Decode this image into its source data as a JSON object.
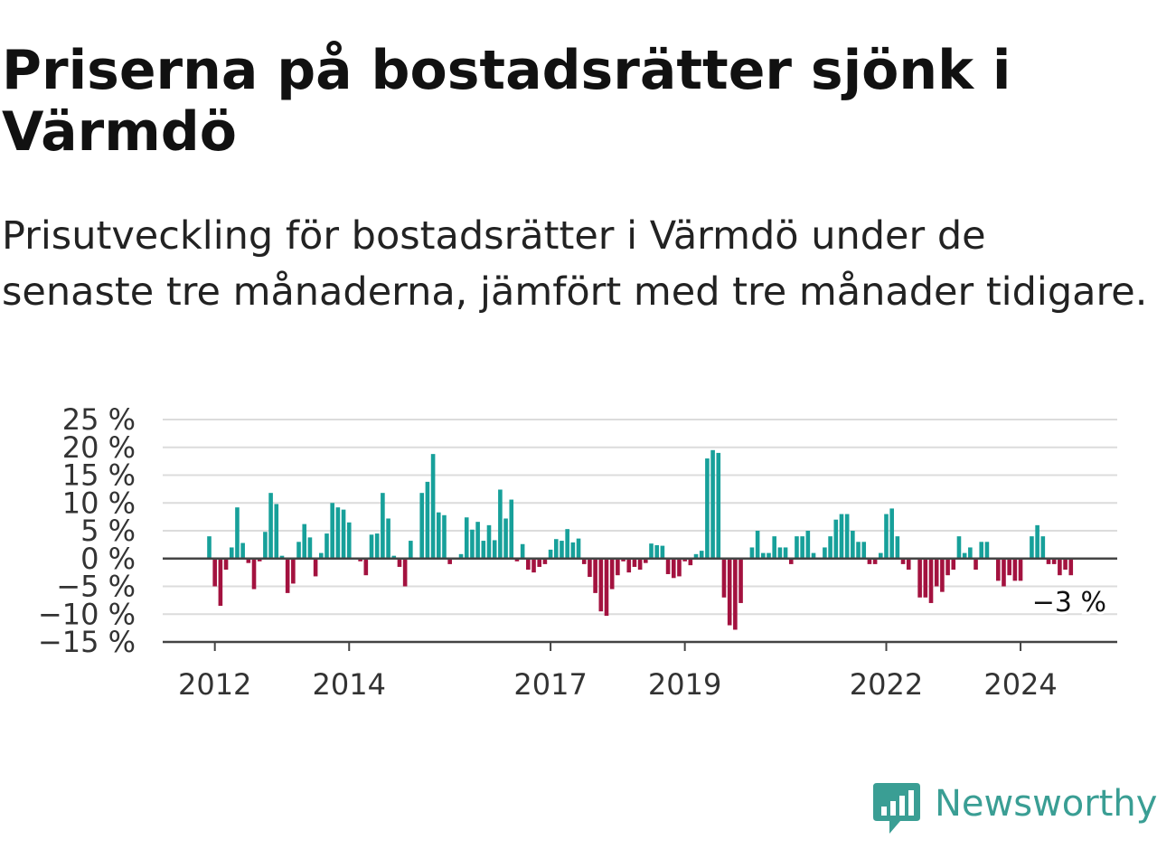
{
  "title": "Priserna på bostadsrätter sjönk i Värmdö",
  "subtitle": "Prisutveckling för bostadsrätter i Värmdö under de senaste tre månaderna, jämfört med tre månader tidigare.",
  "brand": {
    "name": "Newsworthy",
    "logo_icon": "newsworthy-bar-chart-icon",
    "color": "#3a9e94"
  },
  "colors": {
    "positive": "#17a09a",
    "negative": "#a3123f",
    "grid": "#dcdcdc",
    "axis": "#444444"
  },
  "chart_data": {
    "type": "bar",
    "x_start": "2011-12",
    "ylim": [
      -15,
      25
    ],
    "y_ticks": [
      {
        "value": 25,
        "label": "25 %"
      },
      {
        "value": 20,
        "label": "20 %"
      },
      {
        "value": 15,
        "label": "15 %"
      },
      {
        "value": 10,
        "label": "10 %"
      },
      {
        "value": 5,
        "label": "5 %"
      },
      {
        "value": 0,
        "label": "0 %"
      },
      {
        "value": -5,
        "label": "−5 %"
      },
      {
        "value": -10,
        "label": "−10 %"
      },
      {
        "value": -15,
        "label": "−15 %"
      }
    ],
    "x_ticks": [
      {
        "label": "2012",
        "date": "2012-01"
      },
      {
        "label": "2014",
        "date": "2014-01"
      },
      {
        "label": "2017",
        "date": "2017-01"
      },
      {
        "label": "2019",
        "date": "2019-01"
      },
      {
        "label": "2022",
        "date": "2022-01"
      },
      {
        "label": "2024",
        "date": "2024-01"
      }
    ],
    "values": [
      4,
      -5,
      -8.5,
      -2,
      2,
      9.2,
      2.8,
      -0.8,
      -5.5,
      -0.5,
      4.8,
      11.8,
      9.8,
      0.5,
      -6.2,
      -4.5,
      3,
      6.2,
      3.8,
      -3.2,
      1,
      4.5,
      10,
      9.2,
      8.8,
      6.5,
      0,
      -0.5,
      -3,
      4.3,
      4.5,
      11.8,
      7.2,
      0.5,
      -1.5,
      -5,
      3.2,
      0,
      11.8,
      13.8,
      18.8,
      8.3,
      7.8,
      -1,
      0,
      0.8,
      7.4,
      5.2,
      6.6,
      3.2,
      6,
      3.3,
      12.4,
      7.2,
      10.6,
      -0.5,
      2.6,
      -2,
      -2.5,
      -1.5,
      -1,
      1.6,
      3.5,
      3.2,
      5.3,
      2.9,
      3.6,
      -1,
      -3.3,
      -6.2,
      -9.5,
      -10.3,
      -5.5,
      -3,
      -0.5,
      -2.5,
      -1.5,
      -2,
      -0.8,
      2.7,
      2.4,
      2.3,
      -2.8,
      -3.5,
      -3.2,
      -0.5,
      -1.2,
      0.8,
      1.4,
      18,
      19.5,
      19,
      -7,
      -12,
      -12.8,
      -8,
      0,
      2,
      5,
      1,
      1,
      4,
      2,
      2,
      -1,
      4,
      4,
      5,
      1,
      0,
      2,
      4,
      7,
      8,
      8,
      5,
      3,
      3,
      -1,
      -1,
      1,
      8,
      9,
      4,
      -1,
      -2,
      0,
      -7,
      -7,
      -8,
      -5,
      -6,
      -3,
      -2,
      4,
      1,
      2,
      -2,
      3,
      3,
      0,
      -4,
      -5,
      -3,
      -4,
      -4,
      0,
      4,
      6,
      4,
      -1,
      -1,
      -3,
      -2,
      -3
    ],
    "annotation": {
      "label": "−3 %"
    }
  }
}
